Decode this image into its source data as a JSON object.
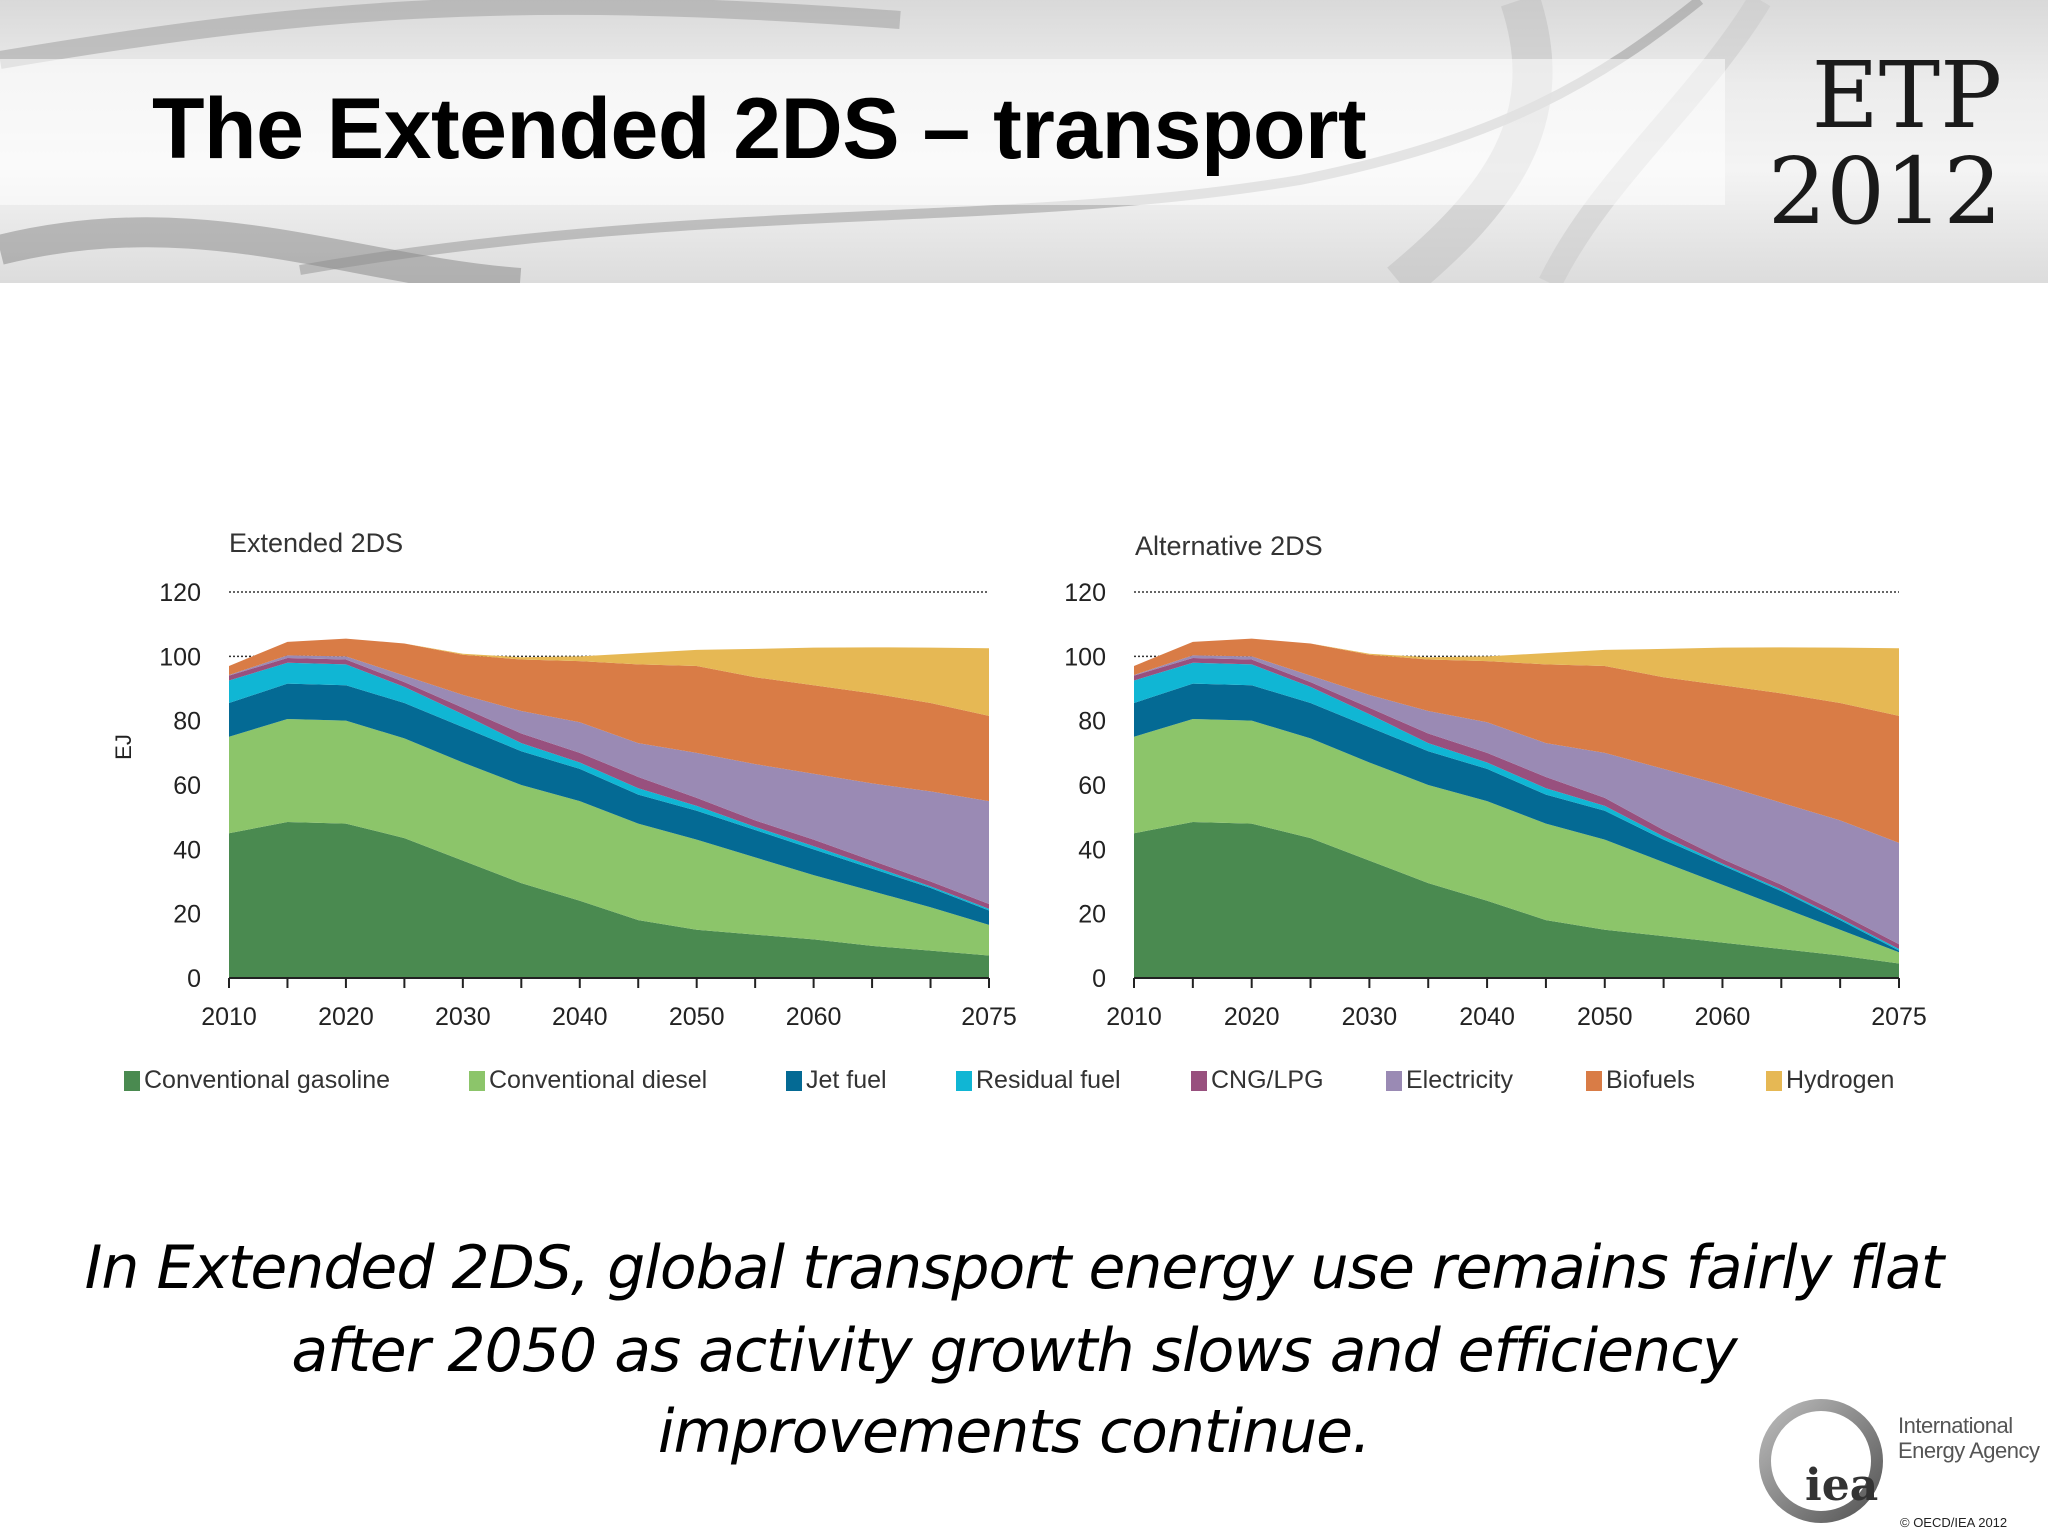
{
  "slide": {
    "title": "The Extended 2DS – transport",
    "badge_line1": "ETP",
    "badge_line2": "2012",
    "caption_lines": [
      "In Extended 2DS, global transport energy use remains fairly flat",
      "after 2050 as activity growth slows and efficiency",
      "improvements continue."
    ],
    "logo": {
      "mark": "iea",
      "line1": "International",
      "line2": "Energy Agency"
    },
    "copyright": "© OECD/IEA 2012"
  },
  "chart_data": [
    {
      "type": "area",
      "stacked": true,
      "title": "Extended 2DS",
      "ylabel": "EJ",
      "xlabel": "",
      "ylim": [
        0,
        120
      ],
      "yticks": [
        0,
        20,
        40,
        60,
        80,
        100,
        120
      ],
      "xlim": [
        2010,
        2075
      ],
      "xtick_labels": [
        2010,
        2020,
        2030,
        2040,
        2050,
        2060,
        2075
      ],
      "grid": "dotted at 100 and 120",
      "legend": "bottom",
      "x": [
        2010,
        2015,
        2020,
        2025,
        2030,
        2035,
        2040,
        2045,
        2050,
        2055,
        2060,
        2065,
        2070,
        2075
      ],
      "series": [
        {
          "name": "Conventional gasoline",
          "color": "#4a8a50",
          "values": [
            45,
            48.5,
            48,
            43.5,
            36.5,
            29.5,
            24,
            18,
            15,
            13.5,
            12,
            10,
            8.5,
            7
          ]
        },
        {
          "name": "Conventional diesel",
          "color": "#8cc56a",
          "values": [
            30,
            32,
            32,
            31,
            30.5,
            30.5,
            31,
            30,
            28,
            24,
            20,
            17,
            13.5,
            9.5
          ]
        },
        {
          "name": "Jet fuel",
          "color": "#046a94",
          "values": [
            10.5,
            11,
            11,
            11,
            11,
            10.5,
            10,
            9,
            9,
            8.5,
            8,
            7,
            6,
            4.5
          ]
        },
        {
          "name": "Residual fuel",
          "color": "#10b6d4",
          "values": [
            7,
            6.5,
            6.5,
            5,
            4,
            2.5,
            2,
            2,
            1.5,
            1,
            1,
            0.8,
            0.5,
            0.5
          ]
        },
        {
          "name": "CNG/LPG",
          "color": "#98507e",
          "values": [
            1.5,
            1.5,
            1.5,
            1.5,
            2,
            3,
            3,
            3.5,
            2.5,
            2,
            2,
            1.7,
            1.5,
            1.5
          ]
        },
        {
          "name": "Electricity",
          "color": "#9a8ab4",
          "values": [
            0.2,
            0.8,
            1,
            2,
            4,
            7,
            9.5,
            10.5,
            14,
            17.5,
            20.5,
            24,
            28,
            32
          ]
        },
        {
          "name": "Biofuels",
          "color": "#d97c46",
          "values": [
            2.8,
            4.2,
            5.5,
            10,
            12.5,
            16,
            19,
            24.5,
            27,
            27,
            27.5,
            28,
            27.5,
            26.5
          ]
        },
        {
          "name": "Hydrogen",
          "color": "#e6b854",
          "values": [
            0,
            0,
            0,
            0,
            0.3,
            0.7,
            1.5,
            3.5,
            5,
            8.8,
            11.7,
            14.3,
            17.2,
            21
          ]
        }
      ]
    },
    {
      "type": "area",
      "stacked": true,
      "title": "Alternative 2DS",
      "ylabel": "",
      "xlabel": "",
      "ylim": [
        0,
        120
      ],
      "yticks": [
        0,
        20,
        40,
        60,
        80,
        100,
        120
      ],
      "xlim": [
        2010,
        2075
      ],
      "xtick_labels": [
        2010,
        2020,
        2030,
        2040,
        2050,
        2060,
        2075
      ],
      "grid": "dotted at 100 and 120",
      "legend": "bottom",
      "x": [
        2010,
        2015,
        2020,
        2025,
        2030,
        2035,
        2040,
        2045,
        2050,
        2055,
        2060,
        2065,
        2070,
        2075
      ],
      "series": [
        {
          "name": "Conventional gasoline",
          "color": "#4a8a50",
          "values": [
            45,
            48.5,
            48,
            43.5,
            36.5,
            29.5,
            24,
            18,
            15,
            13,
            11,
            9,
            7,
            4.5
          ]
        },
        {
          "name": "Conventional diesel",
          "color": "#8cc56a",
          "values": [
            30,
            32,
            32,
            31,
            30.5,
            30.5,
            31,
            30,
            28,
            23,
            18,
            13,
            8,
            3.5
          ]
        },
        {
          "name": "Jet fuel",
          "color": "#046a94",
          "values": [
            10.5,
            11,
            11,
            11,
            11,
            10.5,
            10,
            9,
            9,
            7,
            6,
            5,
            3,
            0.5
          ]
        },
        {
          "name": "Residual fuel",
          "color": "#10b6d4",
          "values": [
            7,
            6.5,
            6.5,
            5,
            4,
            2.5,
            2,
            2,
            1.5,
            1,
            0.5,
            0.5,
            0.5,
            0.5
          ]
        },
        {
          "name": "CNG/LPG",
          "color": "#98507e",
          "values": [
            1.5,
            1.5,
            1.5,
            1.5,
            2,
            3,
            3,
            3.5,
            2.5,
            2,
            1.5,
            1.5,
            1.5,
            1.5
          ]
        },
        {
          "name": "Electricity",
          "color": "#9a8ab4",
          "values": [
            0.2,
            0.8,
            1,
            2,
            4,
            7,
            9.5,
            10.5,
            14,
            19,
            23,
            25.5,
            29,
            31.5
          ]
        },
        {
          "name": "Biofuels",
          "color": "#d97c46",
          "values": [
            2.8,
            4.2,
            5.5,
            10,
            12.5,
            16,
            19,
            24.5,
            27,
            28.5,
            31,
            34,
            36.5,
            39.5
          ]
        },
        {
          "name": "Hydrogen",
          "color": "#e6b854",
          "values": [
            0,
            0,
            0,
            0,
            0.3,
            0.7,
            1.5,
            3.5,
            5,
            8.8,
            11.7,
            14.3,
            17.2,
            21
          ]
        }
      ]
    }
  ]
}
